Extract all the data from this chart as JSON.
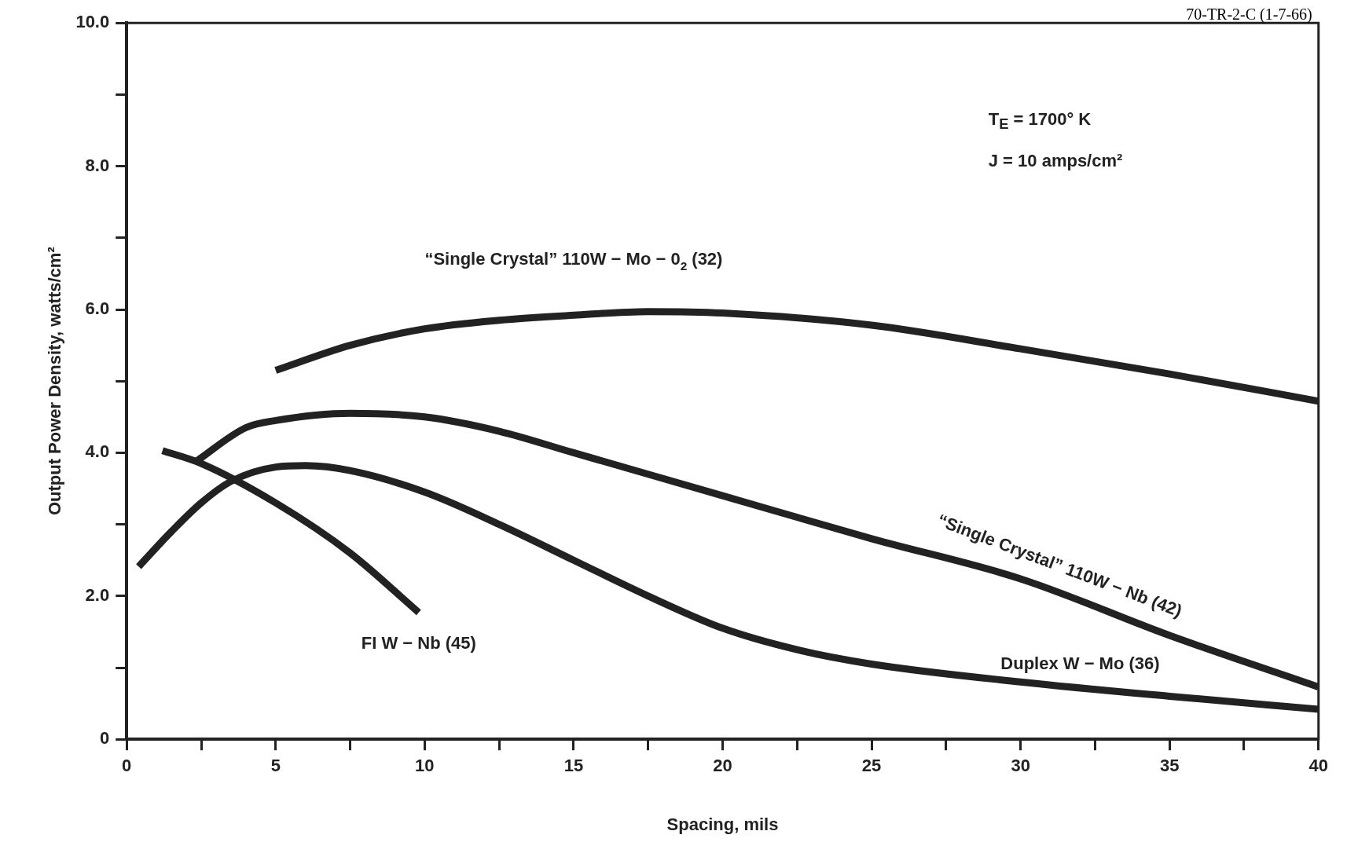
{
  "chart_data": {
    "type": "line",
    "xlabel": "Spacing, mils",
    "ylabel": "Output Power Density, watts/cm²",
    "xlim": [
      0,
      40
    ],
    "ylim": [
      0,
      10
    ],
    "xticks": [
      0,
      {
        "value": 2.5,
        "label": null
      },
      5,
      {
        "value": 7.5,
        "label": null
      },
      10,
      {
        "value": 12.5,
        "label": null
      },
      15,
      {
        "value": 17.5,
        "label": null
      },
      20,
      {
        "value": 22.5,
        "label": null
      },
      25,
      {
        "value": 27.5,
        "label": null
      },
      30,
      {
        "value": 32.5,
        "label": null
      },
      35,
      {
        "value": 37.5,
        "label": null
      },
      40
    ],
    "yticks": [
      0,
      {
        "value": 1,
        "label": null
      },
      {
        "value": 2,
        "label": "2.0"
      },
      {
        "value": 3,
        "label": null
      },
      {
        "value": 4,
        "label": "4.0"
      },
      {
        "value": 5,
        "label": null
      },
      {
        "value": 6,
        "label": "6.0"
      },
      {
        "value": 7,
        "label": null
      },
      {
        "value": 8,
        "label": "8.0"
      },
      {
        "value": 9,
        "label": null
      },
      {
        "value": 10,
        "label": "10.0"
      }
    ],
    "grid": false,
    "legend": false,
    "marker": "none",
    "line_style": "solid",
    "annotations": [
      "70-TR-2-C (1-7-66)",
      "T$_{E}$ = 1700° K",
      "J = 10 amps/cm²"
    ],
    "series": [
      {
        "name": "“Single Crystal” 110W − Mo − 0$_{2}$ (32)",
        "color": "#222222",
        "x": [
          5,
          7.5,
          10,
          12.5,
          15,
          17.5,
          20,
          25,
          30,
          35,
          40
        ],
        "values": [
          5.15,
          5.5,
          5.73,
          5.85,
          5.92,
          5.97,
          5.95,
          5.78,
          5.45,
          5.1,
          4.72
        ]
      },
      {
        "name": "“Single Crystal” 110W − Nb (42)",
        "color": "#222222",
        "x": [
          2.3,
          4,
          5,
          7.5,
          10,
          12.5,
          15,
          20,
          25,
          30,
          35,
          40
        ],
        "values": [
          3.87,
          4.35,
          4.45,
          4.55,
          4.5,
          4.3,
          4.0,
          3.4,
          2.8,
          2.24,
          1.45,
          0.73
        ]
      },
      {
        "name": "Duplex W − Mo (36)",
        "color": "#222222",
        "x": [
          0.4,
          1.5,
          2.5,
          3.5,
          5,
          6,
          7.5,
          10,
          12.5,
          15,
          17.5,
          20,
          22.5,
          25,
          30,
          35,
          40
        ],
        "values": [
          2.41,
          2.9,
          3.3,
          3.6,
          3.8,
          3.82,
          3.75,
          3.45,
          3.0,
          2.5,
          2.0,
          1.55,
          1.25,
          1.05,
          0.8,
          0.6,
          0.42
        ]
      },
      {
        "name": "FI W − Nb (45)",
        "color": "#222222",
        "x": [
          1.2,
          2.5,
          5,
          7.5,
          9.8
        ],
        "values": [
          4.03,
          3.85,
          3.3,
          2.6,
          1.77
        ]
      }
    ]
  }
}
